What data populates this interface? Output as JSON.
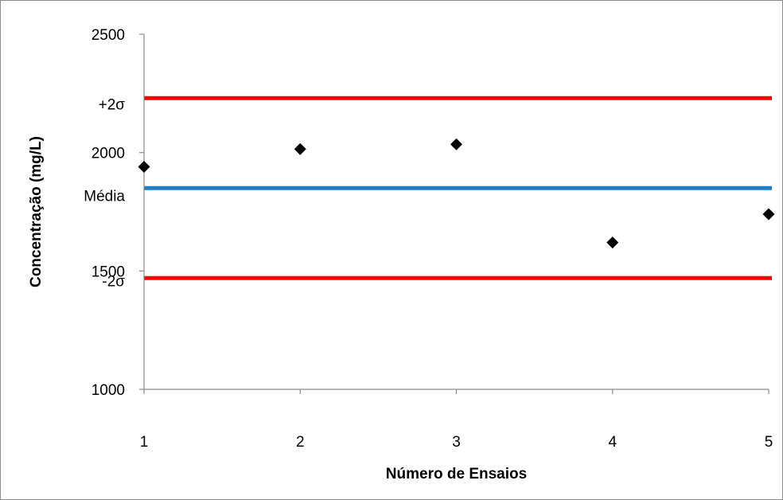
{
  "chart_data": {
    "type": "scatter",
    "x": [
      1,
      2,
      3,
      4,
      5
    ],
    "y": [
      1940,
      2015,
      2035,
      1620,
      1740
    ],
    "xlabel": "Número de Ensaios",
    "ylabel": "Concentração (mg/L)",
    "xlim": [
      1,
      5
    ],
    "ylim": [
      1000,
      2500
    ],
    "x_ticks": [
      1,
      2,
      3,
      4,
      5
    ],
    "y_ticks": [
      1000,
      1500,
      2000,
      2500
    ],
    "marker": "diamond",
    "marker_color": "#000000",
    "grid": false,
    "reference_lines": [
      {
        "label": "+2σ",
        "value": 2230,
        "color": "#ff0000"
      },
      {
        "label": "Média",
        "value": 1850,
        "color": "#1f7bc8"
      },
      {
        "label": "-2σ",
        "value": 1470,
        "color": "#ff0000"
      }
    ]
  }
}
